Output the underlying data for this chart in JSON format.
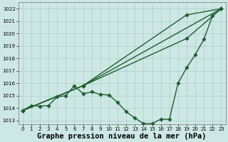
{
  "background_color": "#cde8e4",
  "grid_color": "#aacccc",
  "line_color": "#1e5e2e",
  "xlabel": "Graphe pression niveau de la mer (hPa)",
  "xlabel_fontsize": 7.5,
  "tick_fontsize": 5.0,
  "yticks": [
    1013,
    1014,
    1015,
    1016,
    1017,
    1018,
    1019,
    1020,
    1021,
    1022
  ],
  "xticks": [
    0,
    1,
    2,
    3,
    4,
    5,
    6,
    7,
    8,
    9,
    10,
    11,
    12,
    13,
    14,
    15,
    16,
    17,
    18,
    19,
    20,
    21,
    22,
    23
  ],
  "ylim": [
    1012.7,
    1022.5
  ],
  "xlim": [
    -0.5,
    23.5
  ],
  "line1_x": [
    0,
    1,
    2,
    3,
    4,
    5,
    6,
    7,
    8,
    9,
    10,
    11,
    12,
    13,
    14,
    15,
    16,
    17,
    18,
    19,
    20,
    21,
    22,
    23
  ],
  "line1_y": [
    1013.8,
    1014.2,
    1014.15,
    1014.2,
    1014.9,
    1015.0,
    1015.8,
    1015.15,
    1015.3,
    1015.1,
    1015.05,
    1014.45,
    1013.7,
    1013.2,
    1012.75,
    1012.75,
    1013.1,
    1013.1,
    1016.0,
    1017.25,
    1018.3,
    1019.55,
    1021.45,
    1022.0
  ],
  "line2_x": [
    0,
    7,
    23
  ],
  "line2_y": [
    1013.8,
    1015.8,
    1022.0
  ],
  "line3_x": [
    0,
    7,
    19,
    23
  ],
  "line3_y": [
    1013.8,
    1015.8,
    1021.5,
    1022.0
  ],
  "line4_x": [
    0,
    7,
    19,
    23
  ],
  "line4_y": [
    1013.8,
    1015.8,
    1019.6,
    1022.0
  ],
  "lw": 1.0,
  "ms": 2.8
}
